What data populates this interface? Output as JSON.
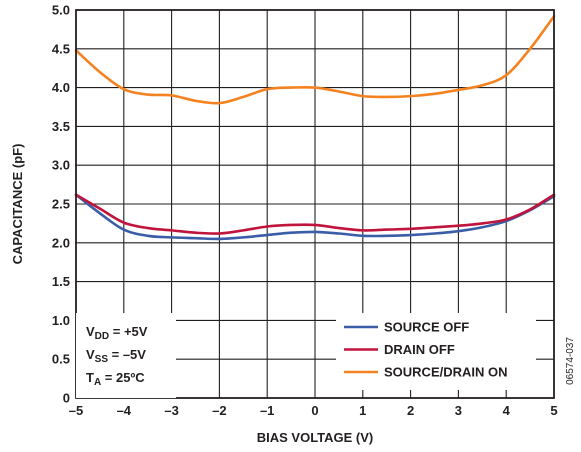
{
  "chart_data": {
    "type": "line",
    "xlabel": "BIAS VOLTAGE (V)",
    "ylabel": "CAPACITANCE (pF)",
    "xlim": [
      -5,
      5
    ],
    "ylim": [
      0,
      5.0
    ],
    "x_ticks": [
      "–5",
      "–4",
      "–3",
      "–2",
      "–1",
      "0",
      "1",
      "2",
      "3",
      "4",
      "5"
    ],
    "y_ticks": [
      "0",
      "0.5",
      "1.0",
      "1.5",
      "2.0",
      "2.5",
      "3.0",
      "3.5",
      "4.0",
      "4.5",
      "5.0"
    ],
    "grid": true,
    "legend_position": "bottom-right",
    "conditions": [
      {
        "main": "V",
        "sub": "DD",
        "rest": " = +5V"
      },
      {
        "main": "V",
        "sub": "SS",
        "rest": " = –5V"
      },
      {
        "main": "T",
        "sub": "A",
        "rest": " = 25ºC"
      }
    ],
    "figure_id": "06574-037",
    "series": [
      {
        "name": "SOURCE OFF",
        "color": "#3a5da8",
        "x": [
          -5,
          -4.5,
          -4,
          -3.5,
          -3,
          -2.5,
          -2,
          -1.5,
          -1,
          -0.5,
          0,
          0.5,
          1,
          1.5,
          2,
          2.5,
          3,
          3.5,
          4,
          4.5,
          5
        ],
        "y": [
          2.62,
          2.38,
          2.17,
          2.09,
          2.07,
          2.06,
          2.05,
          2.07,
          2.1,
          2.13,
          2.14,
          2.12,
          2.09,
          2.09,
          2.1,
          2.12,
          2.15,
          2.2,
          2.28,
          2.42,
          2.6
        ]
      },
      {
        "name": "DRAIN OFF",
        "color": "#c0143c",
        "x": [
          -5,
          -4.5,
          -4,
          -3.5,
          -3,
          -2.5,
          -2,
          -1.5,
          -1,
          -0.5,
          0,
          0.5,
          1,
          1.5,
          2,
          2.5,
          3,
          3.5,
          4,
          4.5,
          5
        ],
        "y": [
          2.62,
          2.44,
          2.26,
          2.19,
          2.16,
          2.13,
          2.12,
          2.16,
          2.21,
          2.23,
          2.23,
          2.19,
          2.16,
          2.17,
          2.18,
          2.2,
          2.22,
          2.25,
          2.3,
          2.43,
          2.62
        ]
      },
      {
        "name": "SOURCE/DRAIN ON",
        "color": "#f58220",
        "x": [
          -5,
          -4.5,
          -4,
          -3.5,
          -3,
          -2.5,
          -2,
          -1.5,
          -1,
          -0.5,
          0,
          0.5,
          1,
          1.5,
          2,
          2.5,
          3,
          3.5,
          4,
          4.5,
          5
        ],
        "y": [
          4.48,
          4.2,
          3.98,
          3.91,
          3.9,
          3.83,
          3.8,
          3.88,
          3.98,
          4.0,
          4.0,
          3.95,
          3.89,
          3.88,
          3.89,
          3.92,
          3.97,
          4.03,
          4.16,
          4.5,
          4.92
        ]
      }
    ]
  }
}
